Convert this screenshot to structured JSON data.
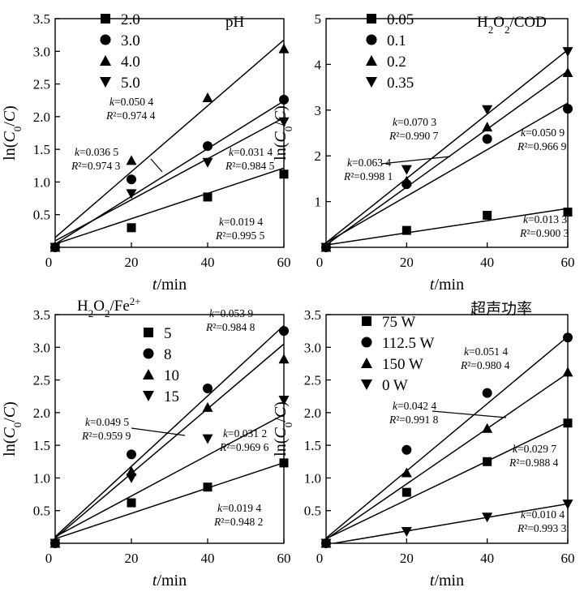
{
  "chart_data": [
    {
      "type": "scatter",
      "title": "pH",
      "title_parts": [
        {
          "t": "pH"
        }
      ],
      "xlabel": "t/min",
      "ylabel": "ln(C0/C)",
      "xlim": [
        0,
        60
      ],
      "ylim": [
        0,
        3.5
      ],
      "xticks": [
        "0",
        "20",
        "40",
        "60"
      ],
      "yticks": [
        "0.5",
        "1.0",
        "1.5",
        "2.0",
        "2.5",
        "3.0",
        "3.5"
      ],
      "x": [
        0,
        20,
        40,
        60
      ],
      "series": [
        {
          "name": "2.0",
          "marker": "square",
          "values": [
            0,
            0.3,
            0.77,
            1.12
          ],
          "fit_k": 0.0194,
          "fit_b": 0.05
        },
        {
          "name": "3.0",
          "marker": "circle",
          "values": [
            0,
            1.04,
            1.55,
            2.26
          ],
          "fit_k": 0.0365,
          "fit_b": 0.05
        },
        {
          "name": "4.0",
          "marker": "triangle-up",
          "values": [
            0,
            1.33,
            2.29,
            3.04
          ],
          "fit_k": 0.0504,
          "fit_b": 0.15
        },
        {
          "name": "5.0",
          "marker": "triangle-down",
          "values": [
            0,
            0.82,
            1.3,
            1.92
          ],
          "fit_k": 0.0314,
          "fit_b": 0.1
        }
      ],
      "annotations": [
        {
          "k": "k=0.050 4",
          "r2": "R²=0.974 4"
        },
        {
          "k": "k=0.036 5",
          "r2": "R²=0.974 3"
        },
        {
          "k": "k=0.031 4",
          "r2": "R²=0.984 5"
        },
        {
          "k": "k=0.019 4",
          "r2": "R²=0.995 5"
        }
      ]
    },
    {
      "type": "scatter",
      "title": "H2O2/COD",
      "title_parts": [
        {
          "t": "H"
        },
        {
          "t": "2",
          "sub": true
        },
        {
          "t": "O"
        },
        {
          "t": "2",
          "sub": true
        },
        {
          "t": "/COD"
        }
      ],
      "xlabel": "t/min",
      "ylabel": "ln(C0/C)",
      "xlim": [
        0,
        60
      ],
      "ylim": [
        0,
        5
      ],
      "xticks": [
        "0",
        "20",
        "40",
        "60"
      ],
      "yticks": [
        "1",
        "2",
        "3",
        "4",
        "5"
      ],
      "x": [
        0,
        20,
        40,
        60
      ],
      "series": [
        {
          "name": "0.05",
          "marker": "square",
          "values": [
            0,
            0.37,
            0.7,
            0.77
          ],
          "fit_k": 0.0133,
          "fit_b": 0.05
        },
        {
          "name": "0.1",
          "marker": "circle",
          "values": [
            0,
            1.38,
            2.37,
            3.03
          ],
          "fit_k": 0.0509,
          "fit_b": 0.1
        },
        {
          "name": "0.2",
          "marker": "triangle-up",
          "values": [
            0,
            1.45,
            2.63,
            3.82
          ],
          "fit_k": 0.0634,
          "fit_b": 0.05
        },
        {
          "name": "0.35",
          "marker": "triangle-down",
          "values": [
            0,
            1.7,
            3.01,
            4.28
          ],
          "fit_k": 0.0703,
          "fit_b": 0.1
        }
      ],
      "annotations": [
        {
          "k": "k=0.070 3",
          "r2": "R²=0.990 7"
        },
        {
          "k": "k=0.063 4",
          "r2": "R²=0.998 1"
        },
        {
          "k": "k=0.050 9",
          "r2": "R²=0.966 9"
        },
        {
          "k": "k=0.013 3",
          "r2": "R²=0.900 3"
        }
      ]
    },
    {
      "type": "scatter",
      "title": "H2O2/Fe2+",
      "title_parts": [
        {
          "t": "H"
        },
        {
          "t": "2",
          "sub": true
        },
        {
          "t": "O"
        },
        {
          "t": "2",
          "sub": true
        },
        {
          "t": "/Fe"
        },
        {
          "t": "2+",
          "sup": true
        }
      ],
      "xlabel": "t/min",
      "ylabel": "ln(C0/C)",
      "xlim": [
        0,
        60
      ],
      "ylim": [
        0,
        3.5
      ],
      "xticks": [
        "0",
        "20",
        "40",
        "60"
      ],
      "yticks": [
        "0.5",
        "1.0",
        "1.5",
        "2.0",
        "2.5",
        "3.0",
        "3.5"
      ],
      "x": [
        0,
        20,
        40,
        60
      ],
      "series": [
        {
          "name": "5",
          "marker": "square",
          "values": [
            0,
            0.62,
            0.86,
            1.23
          ],
          "fit_k": 0.0194,
          "fit_b": 0.07
        },
        {
          "name": "8",
          "marker": "circle",
          "values": [
            0,
            1.36,
            2.37,
            3.25
          ],
          "fit_k": 0.0539,
          "fit_b": 0.1
        },
        {
          "name": "10",
          "marker": "triangle-up",
          "values": [
            0,
            1.1,
            2.08,
            2.82
          ],
          "fit_k": 0.0495,
          "fit_b": 0.08
        },
        {
          "name": "15",
          "marker": "triangle-down",
          "values": [
            0,
            1.0,
            1.6,
            2.19
          ],
          "fit_k": 0.0312,
          "fit_b": 0.1
        }
      ],
      "annotations": [
        {
          "k": "k=0.053 9",
          "r2": "R²=0.984 8"
        },
        {
          "k": "k=0.049 5",
          "r2": "R²=0.959 9"
        },
        {
          "k": "k=0.031 2",
          "r2": "R²=0.969 6"
        },
        {
          "k": "k=0.019 4",
          "r2": "R²=0.948 2"
        }
      ]
    },
    {
      "type": "scatter",
      "title": "超声功率",
      "title_parts": [
        {
          "t": "超声功率"
        }
      ],
      "xlabel": "t/min",
      "ylabel": "ln(C0/C)",
      "xlim": [
        0,
        60
      ],
      "ylim": [
        0,
        3.5
      ],
      "xticks": [
        "0",
        "20",
        "40",
        "60"
      ],
      "yticks": [
        "0.5",
        "1.0",
        "1.5",
        "2.0",
        "2.5",
        "3.0",
        "3.5"
      ],
      "x": [
        0,
        20,
        40,
        60
      ],
      "series": [
        {
          "name": "75 W",
          "marker": "square",
          "values": [
            0,
            0.78,
            1.25,
            1.84
          ],
          "fit_k": 0.0297,
          "fit_b": 0.07
        },
        {
          "name": "112.5 W",
          "marker": "circle",
          "values": [
            0,
            1.43,
            2.3,
            3.15
          ],
          "fit_k": 0.0514,
          "fit_b": 0.08
        },
        {
          "name": "150 W",
          "marker": "triangle-up",
          "values": [
            0,
            1.08,
            1.76,
            2.62
          ],
          "fit_k": 0.0424,
          "fit_b": 0.06
        },
        {
          "name": "0 W",
          "marker": "triangle-down",
          "values": [
            0,
            0.18,
            0.4,
            0.6
          ],
          "fit_k": 0.0104,
          "fit_b": -0.02
        }
      ],
      "annotations": [
        {
          "k": "k=0.051 4",
          "r2": "R²=0.980 4"
        },
        {
          "k": "k=0.042 4",
          "r2": "R²=0.991 8"
        },
        {
          "k": "k=0.029 7",
          "r2": "R²=0.988 4"
        },
        {
          "k": "k=0.010 4",
          "r2": "R²=0.993 3"
        }
      ]
    }
  ]
}
